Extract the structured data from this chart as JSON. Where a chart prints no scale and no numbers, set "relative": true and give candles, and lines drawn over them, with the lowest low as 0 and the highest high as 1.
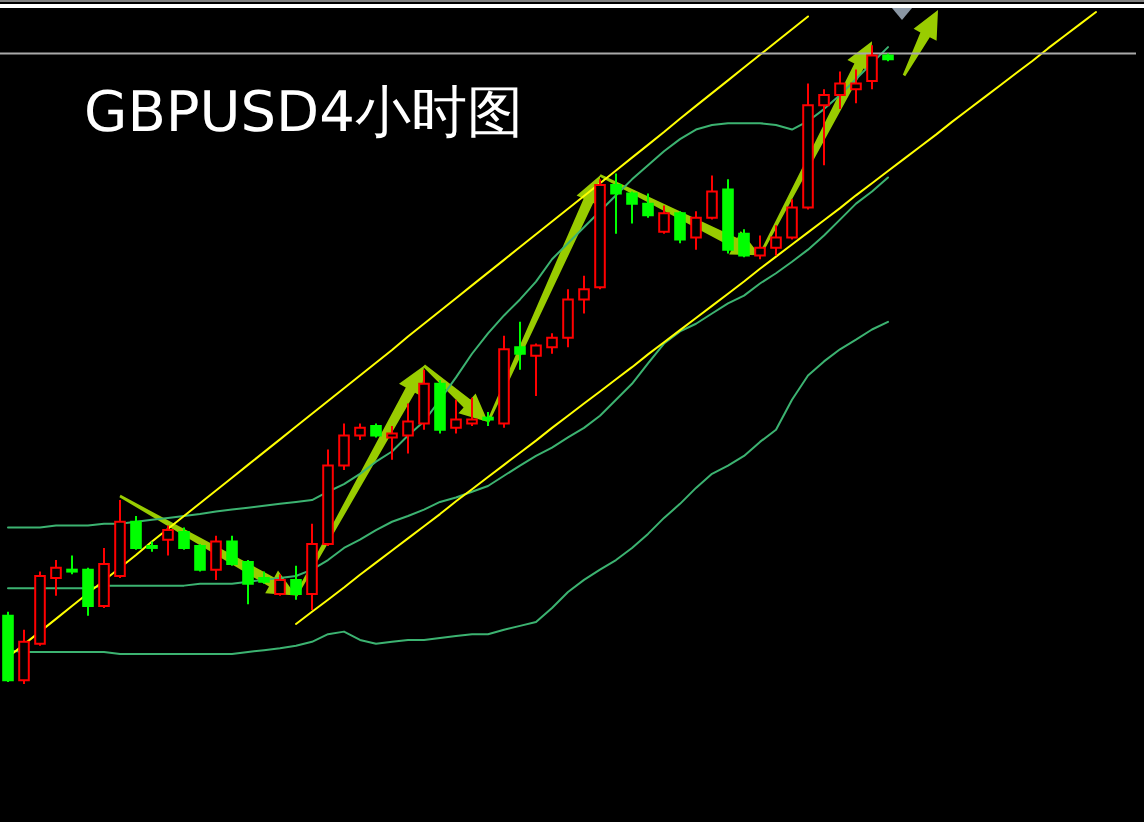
{
  "chart_data": {
    "type": "candlestick",
    "title": "GBPUSD4小时图",
    "relative": true,
    "categories": [
      null,
      null,
      null,
      null,
      null,
      null,
      null,
      null,
      null,
      null,
      null,
      null,
      null,
      null,
      null,
      null,
      null,
      null,
      null,
      null,
      null,
      null,
      null,
      null,
      null,
      null,
      null,
      null,
      null,
      null,
      null,
      null,
      null,
      null,
      null,
      null,
      null,
      null,
      null,
      null,
      null,
      null,
      null,
      null,
      null,
      null,
      null,
      null,
      null,
      null,
      null,
      null,
      null,
      null,
      null,
      null,
      null,
      null,
      null,
      null,
      null,
      null,
      null,
      null,
      null,
      null,
      null,
      null,
      null,
      null,
      null
    ],
    "ohlc": [
      [
        0.107,
        0.113,
        0.003,
        0.006
      ],
      [
        0.006,
        0.085,
        0,
        0.066
      ],
      [
        0.063,
        0.176,
        0.06,
        0.169
      ],
      [
        0.166,
        0.194,
        0.138,
        0.182
      ],
      [
        0.179,
        0.201,
        0.172,
        0.176
      ],
      [
        0.179,
        0.182,
        0.107,
        0.122
      ],
      [
        0.122,
        0.213,
        0.119,
        0.188
      ],
      [
        0.169,
        0.288,
        0.166,
        0.254
      ],
      [
        0.254,
        0.263,
        0.21,
        0.213
      ],
      [
        0.216,
        0.223,
        0.207,
        0.213
      ],
      [
        0.226,
        0.248,
        0.201,
        0.241
      ],
      [
        0.238,
        0.245,
        0.21,
        0.213
      ],
      [
        0.216,
        0.219,
        0.176,
        0.179
      ],
      [
        0.179,
        0.232,
        0.163,
        0.223
      ],
      [
        0.223,
        0.232,
        0.185,
        0.188
      ],
      [
        0.191,
        0.194,
        0.125,
        0.157
      ],
      [
        0.166,
        0.176,
        0.157,
        0.16
      ],
      [
        0.141,
        0.172,
        0.138,
        0.163
      ],
      [
        0.163,
        0.185,
        0.132,
        0.141
      ],
      [
        0.141,
        0.251,
        0.116,
        0.219
      ],
      [
        0.219,
        0.367,
        0.216,
        0.342
      ],
      [
        0.342,
        0.408,
        0.335,
        0.389
      ],
      [
        0.389,
        0.408,
        0.382,
        0.401
      ],
      [
        0.404,
        0.408,
        0.386,
        0.389
      ],
      [
        0.386,
        0.404,
        0.351,
        0.392
      ],
      [
        0.389,
        0.439,
        0.361,
        0.411
      ],
      [
        0.408,
        0.492,
        0.398,
        0.47
      ],
      [
        0.47,
        0.476,
        0.392,
        0.398
      ],
      [
        0.401,
        0.445,
        0.392,
        0.414
      ],
      [
        0.408,
        0.448,
        0.404,
        0.414
      ],
      [
        0.417,
        0.426,
        0.404,
        0.414
      ],
      [
        0.408,
        0.545,
        0.401,
        0.524
      ],
      [
        0.527,
        0.567,
        0.492,
        0.517
      ],
      [
        0.514,
        0.533,
        0.451,
        0.53
      ],
      [
        0.527,
        0.549,
        0.517,
        0.542
      ],
      [
        0.542,
        0.618,
        0.527,
        0.602
      ],
      [
        0.602,
        0.639,
        0.58,
        0.618
      ],
      [
        0.621,
        0.79,
        0.618,
        0.781
      ],
      [
        0.781,
        0.799,
        0.705,
        0.768
      ],
      [
        0.768,
        0.771,
        0.721,
        0.752
      ],
      [
        0.752,
        0.768,
        0.73,
        0.734
      ],
      [
        0.708,
        0.749,
        0.705,
        0.737
      ],
      [
        0.737,
        0.74,
        0.69,
        0.696
      ],
      [
        0.699,
        0.74,
        0.68,
        0.73
      ],
      [
        0.73,
        0.796,
        0.727,
        0.771
      ],
      [
        0.774,
        0.79,
        0.674,
        0.68
      ],
      [
        0.705,
        0.712,
        0.668,
        0.671
      ],
      [
        0.671,
        0.702,
        0.665,
        0.683
      ],
      [
        0.683,
        0.718,
        0.671,
        0.699
      ],
      [
        0.699,
        0.759,
        0.696,
        0.746
      ],
      [
        0.746,
        0.94,
        0.743,
        0.906
      ],
      [
        0.906,
        0.931,
        0.812,
        0.922
      ],
      [
        0.922,
        0.959,
        0.9,
        0.94
      ],
      [
        0.931,
        0.962,
        0.909,
        0.94
      ],
      [
        0.944,
        1.0,
        0.931,
        0.984
      ],
      [
        0.984,
        0.987,
        0.975,
        0.978
      ],
      null,
      null,
      null,
      null,
      null,
      null,
      null,
      null,
      null,
      null,
      null,
      null,
      null,
      null,
      null
    ],
    "colors": [
      "#00ff00",
      "#ff0000",
      "#ff0000",
      "#ff0000",
      "#00ff00",
      "#00ff00",
      "#ff0000",
      "#ff0000",
      "#00ff00",
      "#00ff00",
      "#ff0000",
      "#00ff00",
      "#00ff00",
      "#ff0000",
      "#00ff00",
      "#00ff00",
      "#00ff00",
      "#ff0000",
      "#00ff00",
      "#ff0000",
      "#ff0000",
      "#ff0000",
      "#ff0000",
      "#00ff00",
      "#ff0000",
      "#ff0000",
      "#ff0000",
      "#00ff00",
      "#ff0000",
      "#ff0000",
      "#00ff00",
      "#ff0000",
      "#00ff00",
      "#ff0000",
      "#ff0000",
      "#ff0000",
      "#ff0000",
      "#ff0000",
      "#00ff00",
      "#00ff00",
      "#00ff00",
      "#ff0000",
      "#00ff00",
      "#ff0000",
      "#ff0000",
      "#00ff00",
      "#00ff00",
      "#ff0000",
      "#ff0000",
      "#ff0000",
      "#ff0000",
      "#ff0000",
      "#ff0000",
      "#ff0000",
      "#ff0000",
      "#00ff00",
      null,
      null,
      null,
      null,
      null,
      null,
      null,
      null,
      null,
      null,
      null,
      null,
      null,
      null,
      null
    ],
    "series": [
      {
        "type": "line",
        "color": "#3cb371",
        "values": [
          0.245,
          0.245,
          0.245,
          0.248,
          0.248,
          0.248,
          0.251,
          0.251,
          0.254,
          0.257,
          0.26,
          0.263,
          0.266,
          0.27,
          0.273,
          0.276,
          0.279,
          0.282,
          0.285,
          0.288,
          0.301,
          0.313,
          0.329,
          0.348,
          0.364,
          0.389,
          0.411,
          0.445,
          0.48,
          0.517,
          0.549,
          0.577,
          0.602,
          0.63,
          0.665,
          0.69,
          0.715,
          0.74,
          0.765,
          0.79,
          0.812,
          0.834,
          0.853,
          0.868,
          0.875,
          0.878,
          0.878,
          0.878,
          0.875,
          0.868,
          0.881,
          0.9,
          0.922,
          0.947,
          0.972,
          0.997,
          null,
          null,
          null,
          null,
          null,
          null,
          null,
          null,
          null,
          null,
          null,
          null,
          null,
          null,
          null
        ]
      },
      {
        "type": "line",
        "color": "#3cb371",
        "values": [
          0.15,
          0.15,
          0.15,
          0.15,
          0.15,
          0.15,
          0.154,
          0.154,
          0.154,
          0.154,
          0.154,
          0.154,
          0.157,
          0.157,
          0.157,
          0.16,
          0.163,
          0.166,
          0.169,
          0.179,
          0.194,
          0.213,
          0.226,
          0.241,
          0.254,
          0.263,
          0.273,
          0.285,
          0.292,
          0.301,
          0.31,
          0.326,
          0.342,
          0.357,
          0.37,
          0.386,
          0.401,
          0.42,
          0.445,
          0.47,
          0.502,
          0.533,
          0.552,
          0.564,
          0.58,
          0.596,
          0.608,
          0.627,
          0.643,
          0.661,
          0.68,
          0.702,
          0.727,
          0.752,
          0.771,
          0.793,
          null,
          null,
          null,
          null,
          null,
          null,
          null,
          null,
          null,
          null,
          null,
          null,
          null,
          null,
          null
        ]
      },
      {
        "type": "line",
        "color": "#3cb371",
        "values": [
          0.053,
          0.05,
          0.05,
          0.05,
          0.05,
          0.05,
          0.05,
          0.047,
          0.047,
          0.047,
          0.047,
          0.047,
          0.047,
          0.047,
          0.047,
          0.05,
          0.053,
          0.056,
          0.06,
          0.066,
          0.078,
          0.082,
          0.069,
          0.063,
          0.066,
          0.069,
          0.069,
          0.072,
          0.075,
          0.078,
          0.078,
          0.085,
          0.091,
          0.097,
          0.119,
          0.144,
          0.163,
          0.179,
          0.194,
          0.213,
          0.235,
          0.26,
          0.282,
          0.307,
          0.329,
          0.342,
          0.357,
          0.379,
          0.398,
          0.445,
          0.483,
          0.505,
          0.524,
          0.539,
          0.555,
          0.567,
          null,
          null,
          null,
          null,
          null,
          null,
          null,
          null,
          null,
          null,
          null,
          null,
          null,
          null,
          null
        ]
      },
      {
        "type": "line",
        "color": "#ffff00",
        "values": [
          0.042,
          0.062,
          0.082,
          0.102,
          0.122,
          0.142,
          0.162,
          0.182,
          0.202,
          0.223,
          0.243,
          0.263,
          0.283,
          0.303,
          0.323,
          0.343,
          0.363,
          0.383,
          0.403,
          0.423,
          0.443,
          0.463,
          0.483,
          0.503,
          0.523,
          0.544,
          0.564,
          0.584,
          0.604,
          0.624,
          0.644,
          0.664,
          0.684,
          0.704,
          0.724,
          0.744,
          0.764,
          0.784,
          0.804,
          0.824,
          0.844,
          0.864,
          0.885,
          0.905,
          0.925,
          0.945,
          0.965,
          0.985,
          1.005,
          1.025,
          1.045,
          null,
          null,
          null,
          null,
          null,
          null,
          null,
          null,
          null,
          null,
          null,
          null,
          null,
          null,
          null,
          null,
          null,
          null,
          null,
          null
        ]
      },
      {
        "type": "line",
        "color": "#ffff00",
        "values": [
          null,
          null,
          null,
          null,
          null,
          null,
          null,
          null,
          null,
          null,
          null,
          null,
          null,
          null,
          null,
          null,
          null,
          null,
          0.094,
          0.113,
          0.132,
          0.151,
          0.171,
          0.19,
          0.209,
          0.228,
          0.247,
          0.266,
          0.286,
          0.305,
          0.324,
          0.343,
          0.362,
          0.381,
          0.401,
          0.42,
          0.439,
          0.458,
          0.477,
          0.496,
          0.516,
          0.535,
          0.554,
          0.573,
          0.592,
          0.611,
          0.63,
          0.65,
          0.669,
          0.688,
          0.707,
          0.726,
          0.745,
          0.765,
          0.784,
          0.803,
          0.822,
          0.841,
          0.86,
          0.88,
          0.899,
          0.918,
          0.937,
          0.956,
          0.975,
          0.995,
          1.014,
          1.033,
          1.052,
          null,
          null
        ]
      }
    ],
    "ref_lines": [
      {
        "axis": "y",
        "value": 0.987,
        "color": "#a9a9a9"
      }
    ]
  }
}
